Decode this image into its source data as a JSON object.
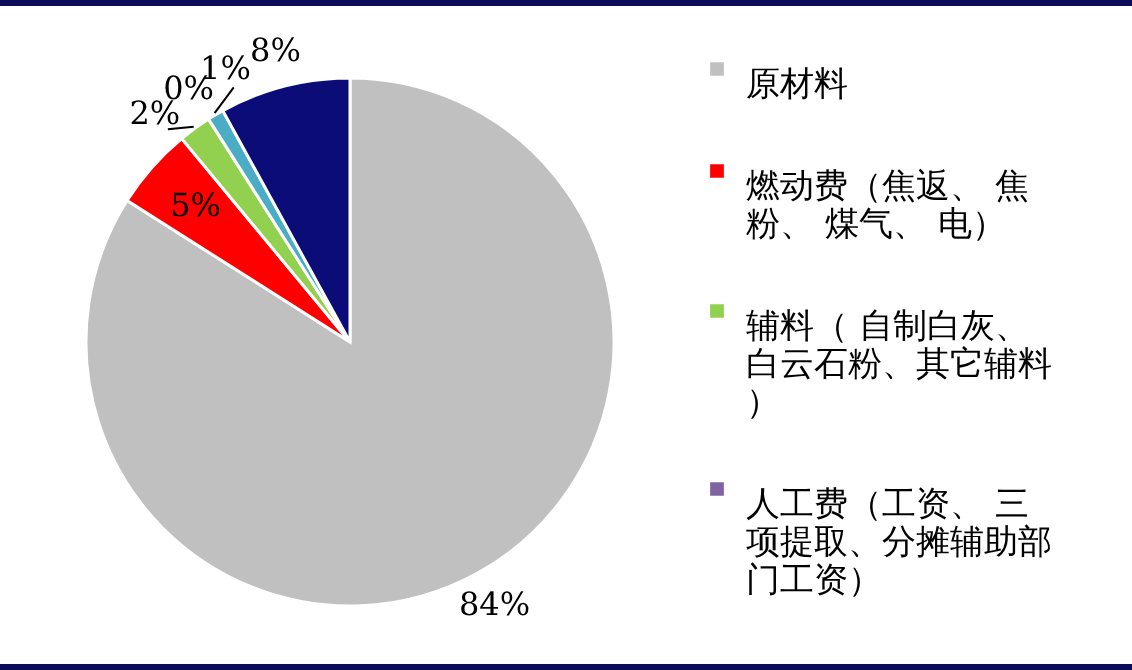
{
  "chart_data": {
    "type": "pie",
    "categories": [
      "原材料",
      "燃动费（焦返、 焦粉、 煤气、 电）",
      "辅料（ 自制白灰、白云石粉、其它辅料）",
      "人工费（工资、 三项提取、分摊辅助部门工资）",
      null,
      null
    ],
    "values": [
      84,
      5,
      2,
      0,
      1,
      8
    ],
    "value_labels": [
      "84%",
      "5%",
      "2%",
      "0%",
      "1%",
      "8%"
    ],
    "colors": [
      "#c0c0c0",
      "#ff0000",
      "#92d050",
      "#8064a2",
      "#4bacc6",
      "#0c0c78"
    ],
    "legend": "right"
  }
}
